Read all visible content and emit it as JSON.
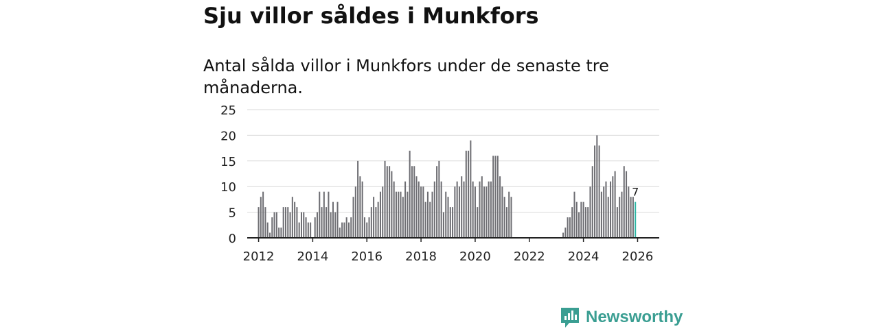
{
  "title": "Sju villor såldes i Munkfors",
  "subtitle": "Antal sålda villor i Munkfors under de senaste tre månaderna.",
  "brand": {
    "name": "Newsworthy",
    "icon": "newsworthy-logo-icon"
  },
  "colors": {
    "bar": "#6e6e73",
    "highlight": "#2bb5a3",
    "grid": "#d9d9d9",
    "axis": "#222222",
    "brand": "#3a9e92"
  },
  "chart_data": {
    "type": "bar",
    "title": "Sju villor såldes i Munkfors",
    "xlabel": "",
    "ylabel": "",
    "ylim": [
      0,
      25
    ],
    "yticks": [
      0,
      5,
      10,
      15,
      20,
      25
    ],
    "xticks": [
      "2012",
      "2014",
      "2016",
      "2018",
      "2020",
      "2022",
      "2024",
      "2026"
    ],
    "xtick_years": [
      2012,
      2014,
      2016,
      2018,
      2020,
      2022,
      2024,
      2026
    ],
    "xlim": [
      2011.58,
      2026.8
    ],
    "start": "2012-01",
    "series": [
      {
        "name": "Antal sålda villor (3 mån)",
        "values": [
          6,
          8,
          9,
          6,
          3,
          1,
          4,
          5,
          5,
          2,
          2,
          6,
          6,
          6,
          5,
          8,
          7,
          6,
          3,
          5,
          5,
          4,
          3,
          3,
          0,
          4,
          5,
          9,
          6,
          9,
          6,
          9,
          5,
          7,
          5,
          7,
          2,
          3,
          3,
          4,
          3,
          4,
          8,
          10,
          15,
          12,
          11,
          4,
          3,
          4,
          6,
          8,
          6,
          7,
          9,
          10,
          15,
          14,
          14,
          13,
          11,
          9,
          9,
          9,
          8,
          11,
          9,
          17,
          14,
          14,
          12,
          11,
          10,
          10,
          7,
          9,
          7,
          9,
          11,
          14,
          15,
          11,
          5,
          9,
          8,
          6,
          6,
          10,
          11,
          10,
          12,
          11,
          17,
          17,
          19,
          11,
          10,
          6,
          11,
          12,
          10,
          10,
          11,
          11,
          16,
          16,
          16,
          12,
          10,
          8,
          6,
          9,
          8,
          0,
          0,
          0,
          0,
          0,
          0,
          0,
          0,
          0,
          0,
          0,
          0,
          0,
          0,
          0,
          0,
          0,
          0,
          0,
          0,
          0,
          0,
          1,
          2,
          4,
          4,
          6,
          9,
          7,
          5,
          7,
          7,
          6,
          6,
          10,
          14,
          18,
          20,
          18,
          9,
          10,
          11,
          8,
          11,
          12,
          13,
          6,
          8,
          9,
          14,
          13,
          10,
          8,
          8,
          7
        ]
      }
    ],
    "highlight_label": "7"
  }
}
